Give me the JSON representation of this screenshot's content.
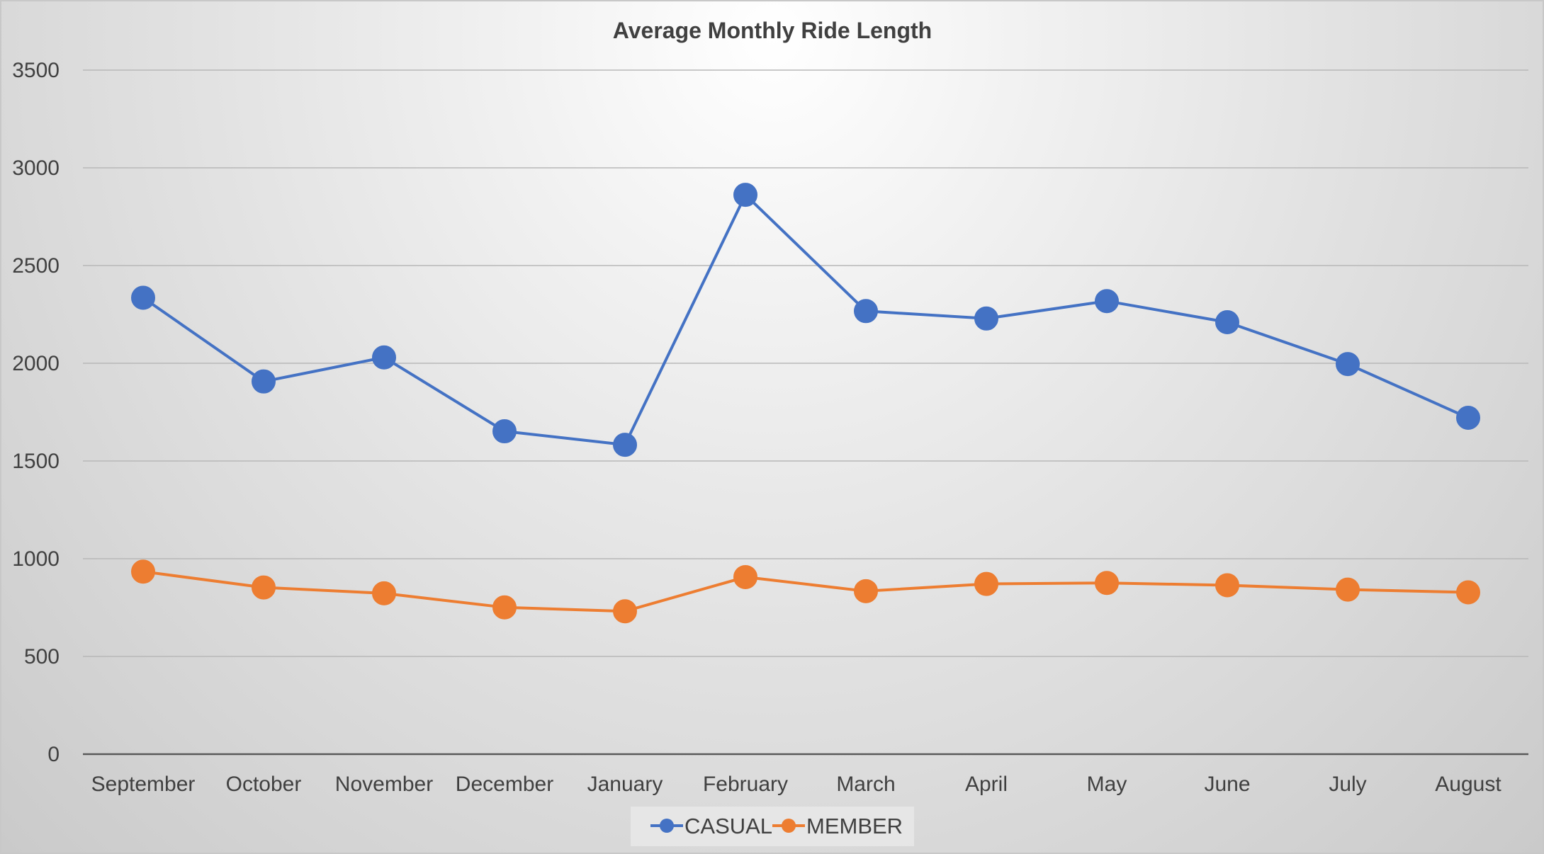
{
  "chart_data": {
    "type": "line",
    "title": "Average Monthly Ride Length",
    "xlabel": "",
    "ylabel": "",
    "categories": [
      "September",
      "October",
      "November",
      "December",
      "January",
      "February",
      "March",
      "April",
      "May",
      "June",
      "July",
      "August"
    ],
    "ylim": [
      0,
      3500
    ],
    "yticks": [
      "0",
      "500",
      "1000",
      "1500",
      "2000",
      "2500",
      "3000",
      "3500"
    ],
    "grid": true,
    "legend_position": "bottom",
    "series": [
      {
        "name": "CASUAL",
        "color": "#4472c4",
        "values": [
          2335,
          1907,
          2030,
          1652,
          1583,
          2862,
          2267,
          2229,
          2318,
          2210,
          1996,
          1721
        ]
      },
      {
        "name": "MEMBER",
        "color": "#ed7d31",
        "values": [
          934,
          853,
          823,
          751,
          731,
          906,
          834,
          871,
          876,
          864,
          842,
          828
        ]
      }
    ]
  }
}
